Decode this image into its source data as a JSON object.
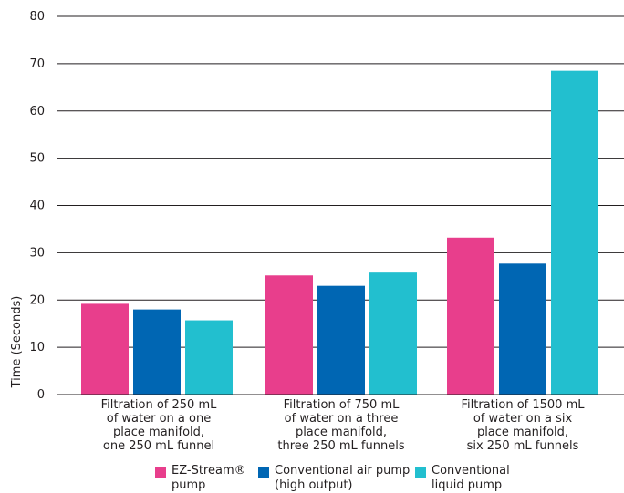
{
  "chart_data": {
    "type": "bar",
    "title": "",
    "xlabel": "",
    "ylabel": "Time  (Seconds)",
    "ylim": [
      0,
      80
    ],
    "yticks": [
      0,
      10,
      20,
      30,
      40,
      50,
      60,
      70,
      80
    ],
    "grid": true,
    "legend_position": "bottom",
    "categories": [
      [
        "Filtration of 250 mL",
        "of water on a one",
        "place manifold,",
        "one 250 mL funnel"
      ],
      [
        "Filtration of 750 mL",
        "of water on a three",
        "place manifold,",
        "three 250 mL funnels"
      ],
      [
        "Filtration of 1500 mL",
        "of water on a six",
        "place manifold,",
        "six 250 mL funnels"
      ]
    ],
    "series": [
      {
        "name": "EZ-Stream® pump",
        "legend_lines": [
          "EZ-Stream®",
          "pump"
        ],
        "color": "#e83e8c",
        "values": [
          19.2,
          25.2,
          33.2
        ]
      },
      {
        "name": "Conventional air pump (high output)",
        "legend_lines": [
          "Conventional air pump",
          "(high output)"
        ],
        "color": "#0066b3",
        "values": [
          18,
          23,
          27.7
        ]
      },
      {
        "name": "Conventional liquid pump",
        "legend_lines": [
          "Conventional",
          "liquid pump"
        ],
        "color": "#22bfcf",
        "values": [
          15.7,
          25.8,
          68.5
        ]
      }
    ]
  }
}
